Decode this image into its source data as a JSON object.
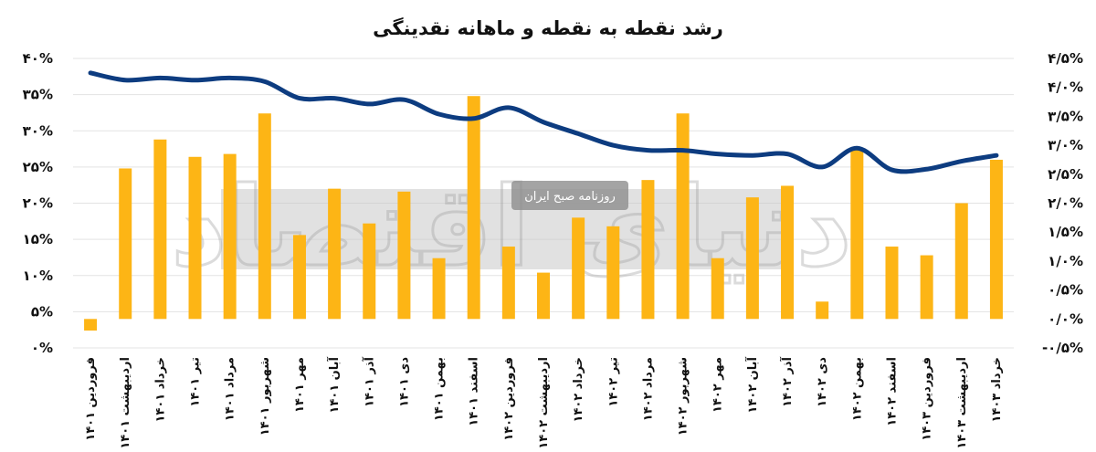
{
  "chart_data": {
    "type": "bar+line",
    "title": "رشد نقطه به نقطه و ماهانه نقدینگی",
    "categories": [
      "فروردین ۱۴۰۱",
      "اردیبهشت ۱۴۰۱",
      "خرداد ۱۴۰۱",
      "تیر ۱۴۰۱",
      "مرداد ۱۴۰۱",
      "شهریور ۱۴۰۱",
      "مهر ۱۴۰۱",
      "آبان ۱۴۰۱",
      "آذر ۱۴۰۱",
      "دی ۱۴۰۱",
      "بهمن ۱۴۰۱",
      "اسفند ۱۴۰۱",
      "فروردین ۱۴۰۲",
      "اردیبهشت ۱۴۰۲",
      "خرداد ۱۴۰۲",
      "تیر ۱۴۰۲",
      "مرداد ۱۴۰۲",
      "شهریور ۱۴۰۲",
      "مهر ۱۴۰۲",
      "آبان ۱۴۰۲",
      "آذر ۱۴۰۲",
      "دی ۱۴۰۲",
      "بهمن ۱۴۰۲",
      "اسفند ۱۴۰۲",
      "فروردین ۱۴۰۳",
      "اردیبهشت ۱۴۰۳",
      "خرداد ۱۴۰۳"
    ],
    "series": [
      {
        "type": "bar",
        "axis": "right",
        "color": "#FDB515",
        "values": [
          -0.2,
          2.6,
          3.1,
          2.8,
          2.85,
          3.55,
          1.45,
          2.25,
          1.65,
          2.2,
          1.05,
          3.85,
          1.25,
          0.8,
          1.75,
          1.6,
          2.4,
          3.55,
          1.05,
          2.1,
          2.3,
          0.3,
          2.95,
          1.25,
          1.1,
          2.0,
          2.75
        ]
      },
      {
        "type": "line",
        "axis": "left",
        "color": "#0D3C80",
        "values": [
          38.0,
          37.0,
          37.3,
          37.0,
          37.3,
          36.8,
          34.5,
          34.5,
          33.7,
          34.3,
          32.3,
          31.7,
          33.2,
          31.2,
          29.6,
          28.0,
          27.3,
          27.3,
          26.8,
          26.6,
          26.8,
          25.0,
          27.6,
          24.6,
          24.7,
          25.8,
          26.6
        ]
      }
    ],
    "yaxis_left": {
      "ticks": [
        "۴۰%",
        "۳۵%",
        "۳۰%",
        "۲۵%",
        "۲۰%",
        "۱۵%",
        "۱۰%",
        "۵%",
        "۰%"
      ],
      "ylim": [
        0,
        40
      ]
    },
    "yaxis_right": {
      "ticks": [
        "۴/۵%",
        "۴/۰%",
        "۳/۵%",
        "۳/۰%",
        "۲/۵%",
        "۲/۰%",
        "۱/۵%",
        "۱/۰%",
        "۰/۵%",
        "۰/۰%",
        "-۰/۵%"
      ],
      "ylim": [
        -0.5,
        4.5
      ]
    },
    "grid": true,
    "legend": "none"
  },
  "watermark": {
    "label": "روزنامه صبح ایران",
    "logo": "دنیای اقتصاد"
  }
}
